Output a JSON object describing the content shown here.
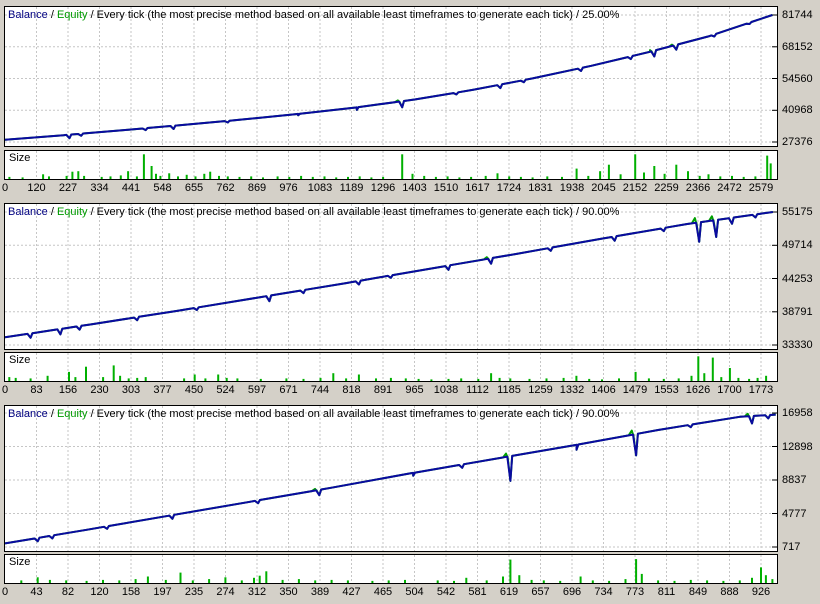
{
  "page": {
    "background": "#d4d0c8",
    "chart_background": "#ffffff",
    "border_color": "#000000",
    "grid_color": "#c6c6c6"
  },
  "colors": {
    "balance_line": "#0a0aa0",
    "balance_text": "#000080",
    "equity_line": "#00a000",
    "equity_text": "#009b00",
    "size_bars": "#00b000"
  },
  "chart_data": {
    "type": "line",
    "panels": [
      {
        "header": {
          "balance": "Balance",
          "sep": " / ",
          "equity": "Equity",
          "method": " / Every tick (the most precise method based on all available least timeframes to generate each tick) / 25.00%"
        },
        "size_label": "Size",
        "y_ticks": [
          81744,
          68152,
          54560,
          40968,
          27376
        ],
        "x_ticks": [
          0,
          120,
          227,
          334,
          441,
          548,
          655,
          762,
          869,
          976,
          1083,
          1189,
          1296,
          1403,
          1510,
          1617,
          1724,
          1831,
          1938,
          2045,
          2152,
          2259,
          2366,
          2472,
          2579
        ],
        "x_max": 2618,
        "balance_anchors": [
          [
            0,
            28300
          ],
          [
            200,
            30300
          ],
          [
            400,
            32400
          ],
          [
            600,
            34600
          ],
          [
            800,
            36900
          ],
          [
            1000,
            39400
          ],
          [
            1200,
            42200
          ],
          [
            1400,
            45600
          ],
          [
            1600,
            49800
          ],
          [
            1800,
            54600
          ],
          [
            2000,
            60000
          ],
          [
            2200,
            66000
          ],
          [
            2400,
            72600
          ],
          [
            2618,
            81744
          ]
        ],
        "dips": [
          [
            220,
            1500,
            0
          ],
          [
            260,
            900,
            0
          ],
          [
            480,
            800,
            0
          ],
          [
            575,
            1400,
            0
          ],
          [
            760,
            700,
            0
          ],
          [
            1000,
            600,
            0
          ],
          [
            1200,
            1100,
            0
          ],
          [
            1355,
            2600,
            600
          ],
          [
            1540,
            800,
            0
          ],
          [
            1690,
            1500,
            0
          ],
          [
            1770,
            900,
            0
          ],
          [
            1965,
            1300,
            0
          ],
          [
            2135,
            1200,
            0
          ],
          [
            2215,
            2500,
            700
          ],
          [
            2290,
            2100,
            600
          ],
          [
            2420,
            900,
            0
          ],
          [
            2540,
            600,
            0
          ]
        ],
        "size_bars": [
          [
            15,
            0.08
          ],
          [
            60,
            0.06
          ],
          [
            130,
            0.18
          ],
          [
            150,
            0.1
          ],
          [
            210,
            0.12
          ],
          [
            230,
            0.28
          ],
          [
            250,
            0.3
          ],
          [
            270,
            0.12
          ],
          [
            330,
            0.08
          ],
          [
            360,
            0.1
          ],
          [
            395,
            0.14
          ],
          [
            420,
            0.3
          ],
          [
            450,
            0.1
          ],
          [
            474,
            0.95
          ],
          [
            500,
            0.5
          ],
          [
            515,
            0.2
          ],
          [
            530,
            0.12
          ],
          [
            560,
            0.22
          ],
          [
            590,
            0.1
          ],
          [
            620,
            0.16
          ],
          [
            650,
            0.1
          ],
          [
            680,
            0.2
          ],
          [
            700,
            0.28
          ],
          [
            730,
            0.12
          ],
          [
            760,
            0.1
          ],
          [
            800,
            0.08
          ],
          [
            840,
            0.1
          ],
          [
            880,
            0.06
          ],
          [
            930,
            0.1
          ],
          [
            970,
            0.08
          ],
          [
            1010,
            0.12
          ],
          [
            1050,
            0.08
          ],
          [
            1090,
            0.1
          ],
          [
            1130,
            0.06
          ],
          [
            1170,
            0.08
          ],
          [
            1210,
            0.1
          ],
          [
            1250,
            0.06
          ],
          [
            1290,
            0.08
          ],
          [
            1355,
            0.95
          ],
          [
            1390,
            0.2
          ],
          [
            1430,
            0.12
          ],
          [
            1470,
            0.08
          ],
          [
            1510,
            0.1
          ],
          [
            1550,
            0.06
          ],
          [
            1590,
            0.08
          ],
          [
            1640,
            0.12
          ],
          [
            1680,
            0.22
          ],
          [
            1720,
            0.1
          ],
          [
            1760,
            0.08
          ],
          [
            1800,
            0.06
          ],
          [
            1850,
            0.1
          ],
          [
            1900,
            0.08
          ],
          [
            1950,
            0.4
          ],
          [
            1990,
            0.12
          ],
          [
            2030,
            0.3
          ],
          [
            2060,
            0.55
          ],
          [
            2100,
            0.18
          ],
          [
            2150,
            0.95
          ],
          [
            2180,
            0.25
          ],
          [
            2215,
            0.5
          ],
          [
            2250,
            0.2
          ],
          [
            2290,
            0.55
          ],
          [
            2330,
            0.3
          ],
          [
            2370,
            0.12
          ],
          [
            2400,
            0.18
          ],
          [
            2440,
            0.1
          ],
          [
            2480,
            0.12
          ],
          [
            2520,
            0.08
          ],
          [
            2560,
            0.1
          ],
          [
            2600,
            0.9
          ],
          [
            2612,
            0.6
          ]
        ]
      },
      {
        "header": {
          "balance": "Balance",
          "sep": " / ",
          "equity": "Equity",
          "method": " / Every tick (the most precise method based on all available least timeframes to generate each tick) / 90.00%"
        },
        "size_label": "Size",
        "y_ticks": [
          55175,
          49714,
          44253,
          38791,
          33330
        ],
        "x_ticks": [
          0,
          83,
          156,
          230,
          303,
          377,
          450,
          524,
          597,
          671,
          744,
          818,
          891,
          965,
          1038,
          1112,
          1185,
          1259,
          1332,
          1406,
          1479,
          1553,
          1626,
          1700,
          1773
        ],
        "x_max": 1801,
        "balance_anchors": [
          [
            0,
            34600
          ],
          [
            200,
            36700
          ],
          [
            400,
            38900
          ],
          [
            600,
            41200
          ],
          [
            800,
            43500
          ],
          [
            1000,
            45900
          ],
          [
            1200,
            48300
          ],
          [
            1400,
            50800
          ],
          [
            1600,
            53200
          ],
          [
            1801,
            55175
          ]
        ],
        "dips": [
          [
            60,
            700,
            0
          ],
          [
            130,
            900,
            0
          ],
          [
            175,
            600,
            0
          ],
          [
            310,
            500,
            0
          ],
          [
            450,
            400,
            0
          ],
          [
            620,
            900,
            0
          ],
          [
            700,
            500,
            0
          ],
          [
            830,
            600,
            0
          ],
          [
            905,
            400,
            0
          ],
          [
            1040,
            700,
            0
          ],
          [
            1140,
            900,
            300
          ],
          [
            1280,
            500,
            0
          ],
          [
            1430,
            700,
            0
          ],
          [
            1545,
            500,
            0
          ],
          [
            1628,
            3200,
            800
          ],
          [
            1668,
            2800,
            700
          ],
          [
            1705,
            1000,
            0
          ],
          [
            1760,
            500,
            0
          ]
        ],
        "size_bars": [
          [
            10,
            0.15
          ],
          [
            25,
            0.12
          ],
          [
            60,
            0.1
          ],
          [
            100,
            0.2
          ],
          [
            150,
            0.35
          ],
          [
            165,
            0.15
          ],
          [
            190,
            0.55
          ],
          [
            230,
            0.15
          ],
          [
            255,
            0.6
          ],
          [
            270,
            0.2
          ],
          [
            290,
            0.1
          ],
          [
            310,
            0.12
          ],
          [
            330,
            0.15
          ],
          [
            420,
            0.1
          ],
          [
            445,
            0.25
          ],
          [
            470,
            0.1
          ],
          [
            500,
            0.25
          ],
          [
            520,
            0.12
          ],
          [
            545,
            0.1
          ],
          [
            600,
            0.08
          ],
          [
            660,
            0.1
          ],
          [
            700,
            0.08
          ],
          [
            740,
            0.12
          ],
          [
            770,
            0.3
          ],
          [
            800,
            0.1
          ],
          [
            830,
            0.25
          ],
          [
            870,
            0.1
          ],
          [
            905,
            0.12
          ],
          [
            940,
            0.1
          ],
          [
            970,
            0.08
          ],
          [
            1000,
            0.06
          ],
          [
            1040,
            0.08
          ],
          [
            1070,
            0.1
          ],
          [
            1110,
            0.08
          ],
          [
            1140,
            0.3
          ],
          [
            1160,
            0.12
          ],
          [
            1185,
            0.1
          ],
          [
            1230,
            0.08
          ],
          [
            1270,
            0.1
          ],
          [
            1310,
            0.12
          ],
          [
            1340,
            0.2
          ],
          [
            1370,
            0.08
          ],
          [
            1400,
            0.06
          ],
          [
            1440,
            0.1
          ],
          [
            1479,
            0.35
          ],
          [
            1510,
            0.1
          ],
          [
            1545,
            0.08
          ],
          [
            1580,
            0.1
          ],
          [
            1610,
            0.2
          ],
          [
            1626,
            0.95
          ],
          [
            1640,
            0.3
          ],
          [
            1660,
            0.9
          ],
          [
            1680,
            0.15
          ],
          [
            1700,
            0.5
          ],
          [
            1720,
            0.12
          ],
          [
            1745,
            0.08
          ],
          [
            1765,
            0.12
          ],
          [
            1785,
            0.2
          ]
        ]
      },
      {
        "header": {
          "balance": "Balance",
          "sep": " / ",
          "equity": "Equity",
          "method": " / Every tick (the most precise method based on all available least timeframes to generate each tick) / 90.00%"
        },
        "size_label": "Size",
        "y_ticks": [
          16958,
          12898,
          8837,
          4777,
          717
        ],
        "x_ticks": [
          0,
          43,
          82,
          120,
          158,
          197,
          235,
          274,
          312,
          350,
          389,
          427,
          465,
          504,
          542,
          581,
          619,
          657,
          696,
          734,
          773,
          811,
          849,
          888,
          926
        ],
        "x_max": 944,
        "balance_anchors": [
          [
            0,
            1150
          ],
          [
            100,
            2800
          ],
          [
            200,
            4500
          ],
          [
            300,
            6200
          ],
          [
            400,
            7900
          ],
          [
            500,
            9700
          ],
          [
            600,
            11400
          ],
          [
            700,
            13100
          ],
          [
            800,
            14900
          ],
          [
            900,
            16500
          ],
          [
            944,
            16760
          ]
        ],
        "dips": [
          [
            40,
            400,
            0
          ],
          [
            58,
            350,
            0
          ],
          [
            125,
            300,
            0
          ],
          [
            205,
            450,
            0
          ],
          [
            310,
            350,
            0
          ],
          [
            385,
            650,
            200
          ],
          [
            500,
            350,
            0
          ],
          [
            560,
            400,
            0
          ],
          [
            619,
            3000,
            400
          ],
          [
            700,
            600,
            0
          ],
          [
            773,
            2600,
            500
          ],
          [
            840,
            300,
            0
          ],
          [
            915,
            900,
            300
          ],
          [
            935,
            400,
            0
          ]
        ],
        "size_bars": [
          [
            20,
            0.1
          ],
          [
            40,
            0.22
          ],
          [
            55,
            0.12
          ],
          [
            75,
            0.1
          ],
          [
            100,
            0.08
          ],
          [
            120,
            0.12
          ],
          [
            140,
            0.1
          ],
          [
            160,
            0.15
          ],
          [
            175,
            0.25
          ],
          [
            197,
            0.12
          ],
          [
            215,
            0.4
          ],
          [
            230,
            0.1
          ],
          [
            250,
            0.15
          ],
          [
            270,
            0.22
          ],
          [
            290,
            0.1
          ],
          [
            305,
            0.2
          ],
          [
            312,
            0.28
          ],
          [
            320,
            0.45
          ],
          [
            340,
            0.12
          ],
          [
            360,
            0.15
          ],
          [
            380,
            0.1
          ],
          [
            400,
            0.12
          ],
          [
            420,
            0.1
          ],
          [
            450,
            0.08
          ],
          [
            470,
            0.1
          ],
          [
            490,
            0.12
          ],
          [
            530,
            0.1
          ],
          [
            550,
            0.08
          ],
          [
            565,
            0.2
          ],
          [
            590,
            0.1
          ],
          [
            610,
            0.25
          ],
          [
            619,
            0.9
          ],
          [
            630,
            0.3
          ],
          [
            645,
            0.12
          ],
          [
            660,
            0.1
          ],
          [
            680,
            0.08
          ],
          [
            705,
            0.25
          ],
          [
            720,
            0.1
          ],
          [
            740,
            0.08
          ],
          [
            760,
            0.15
          ],
          [
            773,
            0.92
          ],
          [
            780,
            0.35
          ],
          [
            800,
            0.1
          ],
          [
            820,
            0.08
          ],
          [
            840,
            0.12
          ],
          [
            860,
            0.1
          ],
          [
            880,
            0.08
          ],
          [
            900,
            0.1
          ],
          [
            915,
            0.2
          ],
          [
            926,
            0.6
          ],
          [
            932,
            0.3
          ],
          [
            940,
            0.15
          ]
        ]
      }
    ]
  }
}
